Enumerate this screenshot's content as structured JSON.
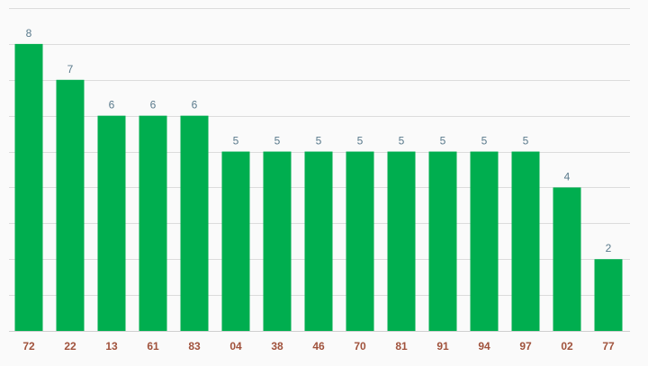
{
  "chart_data": {
    "type": "bar",
    "categories": [
      "72",
      "22",
      "13",
      "61",
      "83",
      "04",
      "38",
      "46",
      "70",
      "81",
      "91",
      "94",
      "97",
      "02",
      "77"
    ],
    "values": [
      8,
      7,
      6,
      6,
      6,
      5,
      5,
      5,
      5,
      5,
      5,
      5,
      5,
      4,
      2
    ],
    "ylim": [
      0,
      9
    ],
    "grid": true,
    "data_labels": true,
    "legend": "none"
  },
  "colors": {
    "bar": "#00ae4f",
    "value_label": "#5a7a8c",
    "tick_label": "#a0523c",
    "background": "#fafafa"
  }
}
